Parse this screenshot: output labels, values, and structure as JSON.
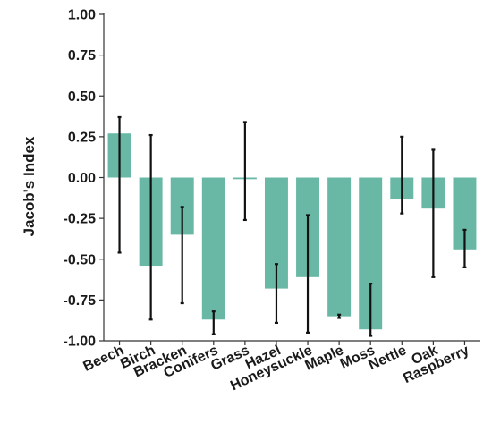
{
  "chart_data": {
    "type": "bar",
    "title": "",
    "xlabel": "",
    "ylabel": "Jacob's Index",
    "ylim": [
      -1.0,
      1.0
    ],
    "yticks": [
      1.0,
      0.75,
      0.5,
      0.25,
      0.0,
      -0.25,
      -0.5,
      -0.75,
      -1.0
    ],
    "ytick_labels": [
      "1.00",
      "0.75",
      "0.50",
      "0.25",
      "0.00",
      "-0.25",
      "-0.50",
      "-0.75",
      "-1.00"
    ],
    "categories": [
      "Beech",
      "Birch",
      "Bracken",
      "Conifers",
      "Grass",
      "Hazel",
      "Honeysuckle",
      "Maple",
      "Moss",
      "Nettle",
      "Oak",
      "Raspberry"
    ],
    "values": [
      0.27,
      -0.54,
      -0.35,
      -0.87,
      -0.01,
      -0.68,
      -0.61,
      -0.85,
      -0.93,
      -0.13,
      -0.19,
      -0.44
    ],
    "error_low": [
      -0.46,
      -0.87,
      -0.77,
      -0.96,
      -0.26,
      -0.89,
      -0.95,
      -0.86,
      -0.97,
      -0.22,
      -0.61,
      -0.55
    ],
    "error_high": [
      0.37,
      0.26,
      -0.18,
      -0.82,
      0.34,
      -0.53,
      -0.23,
      -0.84,
      -0.65,
      0.25,
      0.17,
      -0.32
    ],
    "grid": false,
    "legend": "none",
    "colors": {
      "bar": "#69b8a5",
      "error_bar": "#111111",
      "axis": "#333333"
    }
  }
}
